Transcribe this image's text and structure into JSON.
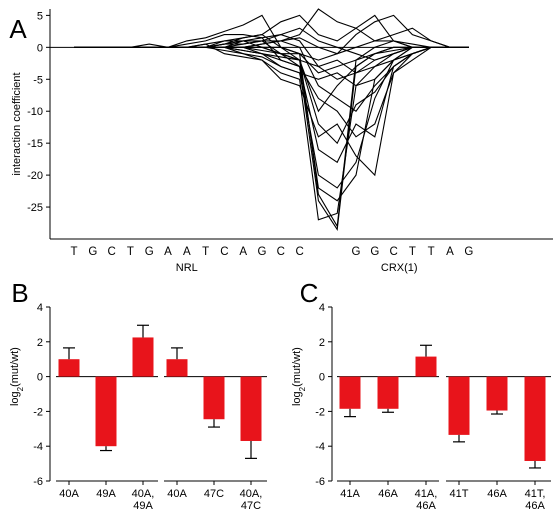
{
  "colors": {
    "bar": "#e8141b",
    "line": "#000000",
    "axis": "#000000"
  },
  "chart_data": [
    {
      "panel": "A",
      "type": "line",
      "ylabel": "interaction coefficient",
      "ylim": [
        -30,
        6
      ],
      "yticks": [
        5,
        0,
        -5,
        -10,
        -15,
        -20,
        -25
      ],
      "x_labels": [
        "T",
        "G",
        "C",
        "T",
        "G",
        "A",
        "A",
        "T",
        "C",
        "A",
        "G",
        "C",
        "C",
        "",
        "",
        "G",
        "G",
        "C",
        "T",
        "T",
        "A",
        "G"
      ],
      "group_labels": [
        "NRL",
        "CRX(1)"
      ],
      "lines": [
        [
          0,
          0,
          0,
          0,
          0.5,
          0,
          1,
          1.5,
          2.5,
          3.5,
          5,
          0,
          -1,
          -23,
          -28,
          -2,
          0,
          1,
          0.5,
          0,
          0,
          0
        ],
        [
          0,
          0,
          0,
          0,
          0,
          0,
          0.5,
          1,
          2,
          2,
          1.5,
          -2,
          -3,
          -24,
          -28.5,
          -3,
          -1,
          0,
          0,
          0,
          0,
          0
        ],
        [
          0,
          0,
          0,
          0,
          0,
          0,
          0,
          0.5,
          -1,
          -1.5,
          -2,
          -4,
          -5,
          -27,
          -26,
          -6,
          -3,
          -1,
          0,
          0,
          0,
          0
        ],
        [
          0,
          0,
          0,
          0,
          0,
          0,
          0,
          0.5,
          1,
          1.5,
          2,
          0,
          -2,
          -22,
          -24,
          -20,
          -5,
          -2,
          -1,
          0,
          0,
          0
        ],
        [
          0,
          0,
          0,
          0,
          0,
          0,
          0,
          0,
          0.5,
          1,
          1,
          -1,
          -3,
          -16,
          -18,
          -12,
          -14,
          -3,
          -1,
          0,
          0,
          0
        ],
        [
          0,
          0,
          0,
          0,
          0,
          0,
          0,
          0,
          0,
          -1,
          -1.5,
          -3,
          -4,
          -5,
          -4,
          -6,
          -5,
          -2,
          -1,
          0,
          0,
          0
        ],
        [
          0,
          0,
          0,
          0,
          0,
          0,
          0,
          0,
          1,
          1,
          0,
          -1,
          -2,
          -3,
          -2,
          -4,
          -3,
          -2,
          0,
          0,
          0,
          0
        ],
        [
          0,
          0,
          0,
          0,
          0,
          0,
          0,
          0,
          0,
          0.5,
          1,
          2,
          3,
          1,
          0,
          -1,
          -2,
          -1,
          0,
          0,
          0,
          0
        ],
        [
          0,
          0,
          0,
          0,
          0,
          0,
          0,
          0,
          0.5,
          1.5,
          2,
          4,
          5,
          2,
          1,
          3,
          5,
          1,
          0,
          0,
          0,
          0
        ],
        [
          0,
          0,
          0,
          0,
          0,
          0,
          0,
          0,
          0,
          0,
          0.5,
          1,
          2,
          6,
          4,
          3,
          1,
          1,
          0,
          0,
          0,
          0
        ],
        [
          0,
          0,
          0,
          0,
          0,
          0,
          0,
          0,
          -0.5,
          -1,
          -2,
          -5,
          -6,
          -14,
          -12,
          -17,
          -20,
          -4,
          -1,
          0,
          0,
          0
        ],
        [
          0,
          0,
          0,
          0,
          0,
          0,
          0,
          0,
          0,
          -0.5,
          -1,
          -2,
          -3,
          -8,
          -10,
          -14,
          -12,
          -4,
          -2,
          0,
          0,
          0
        ],
        [
          0,
          0,
          0,
          0,
          0,
          0,
          0,
          0,
          0.5,
          0.5,
          1,
          1,
          0,
          -6,
          -8,
          -10,
          -6,
          -3,
          -1,
          0,
          0,
          0
        ],
        [
          0,
          0,
          0,
          0,
          0,
          0,
          0,
          0,
          0,
          1,
          1.5,
          2,
          1,
          -3,
          -5,
          -4,
          -2,
          -1,
          0,
          0,
          0,
          0
        ],
        [
          0,
          0,
          0,
          0,
          0,
          0,
          0,
          0,
          0,
          0,
          0,
          -1,
          -2,
          -10,
          -6,
          -3,
          -1,
          0,
          0,
          0,
          0,
          0
        ],
        [
          0,
          0,
          0,
          0,
          0,
          0,
          0,
          0,
          0,
          0,
          -1,
          -3,
          -4,
          -20,
          -22,
          -18,
          -8,
          -2,
          0,
          0,
          0,
          0
        ],
        [
          0,
          0,
          0,
          0,
          0,
          0,
          0,
          0,
          0,
          0,
          0,
          0,
          -1,
          -2,
          -1,
          0,
          1,
          2,
          3,
          1,
          0,
          0
        ],
        [
          0,
          0,
          0,
          0,
          0,
          0,
          0,
          0,
          0,
          0,
          0.5,
          1,
          1.5,
          0,
          -1,
          2,
          4,
          5,
          2,
          1,
          0,
          0
        ],
        [
          0,
          0,
          0,
          0,
          0,
          0,
          0,
          0,
          0,
          -0.5,
          -1,
          -1.5,
          -2,
          -12,
          -15,
          -9,
          -7,
          -3,
          -1,
          0,
          0,
          0
        ],
        [
          0,
          0,
          0,
          0,
          0,
          0,
          0,
          0,
          0,
          0,
          -0.5,
          -1,
          -1,
          -4,
          -3,
          -2,
          -1,
          -0.5,
          0,
          0,
          0,
          0
        ]
      ]
    },
    {
      "panel": "B",
      "type": "bar",
      "ylabel": "log2(mut/wt)",
      "ylim": [
        -6,
        4
      ],
      "yticks": [
        4,
        2,
        0,
        -2,
        -4,
        -6
      ],
      "groups": [
        {
          "categories": [
            [
              "40A"
            ],
            [
              "49A"
            ],
            [
              "40A,",
              "49A"
            ]
          ],
          "values": [
            1.0,
            -4.0,
            2.25
          ],
          "errors": [
            0.65,
            0.25,
            0.7
          ]
        },
        {
          "categories": [
            [
              "40A"
            ],
            [
              "47C"
            ],
            [
              "40A,",
              "47C"
            ]
          ],
          "values": [
            1.0,
            -2.45,
            -3.7
          ],
          "errors": [
            0.65,
            0.45,
            1.0
          ]
        }
      ]
    },
    {
      "panel": "C",
      "type": "bar",
      "ylabel": "log2(mut/wt)",
      "ylim": [
        -6,
        4
      ],
      "yticks": [
        4,
        2,
        0,
        -2,
        -4,
        -6
      ],
      "groups": [
        {
          "categories": [
            [
              "41A"
            ],
            [
              "46A"
            ],
            [
              "41A,",
              "46A"
            ]
          ],
          "values": [
            -1.85,
            -1.85,
            1.15
          ],
          "errors": [
            0.45,
            0.2,
            0.65
          ]
        },
        {
          "categories": [
            [
              "41T"
            ],
            [
              "46A"
            ],
            [
              "41T,",
              "46A"
            ]
          ],
          "values": [
            -3.35,
            -1.95,
            -4.85
          ],
          "errors": [
            0.4,
            0.2,
            0.4
          ]
        }
      ]
    }
  ]
}
